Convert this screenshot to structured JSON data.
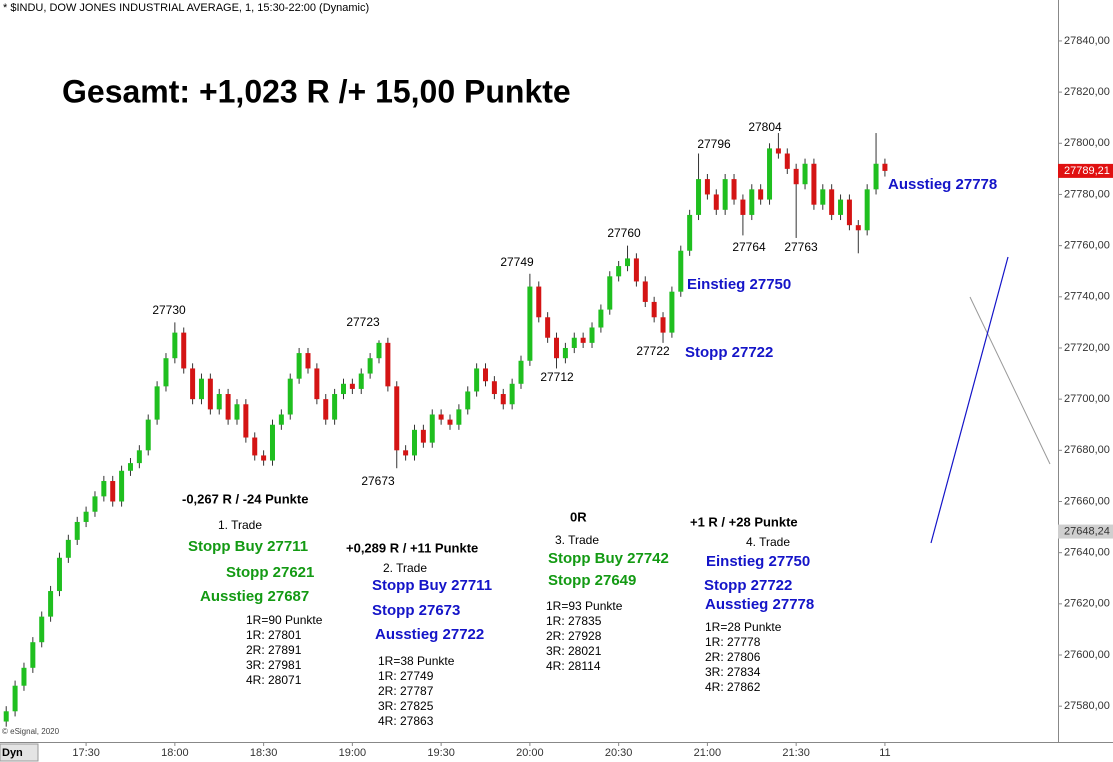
{
  "chart_data": {
    "type": "candlestick",
    "title": "* $INDU, DOW JONES INDUSTRIAL AVERAGE, 1, 15:30-22:00 (Dynamic)",
    "credit": "© eSignal, 2020",
    "tab": "Dyn",
    "up_color": "#1fbf1f",
    "down_color": "#d41414",
    "ylim": [
      27566,
      27856
    ],
    "yticks": [
      {
        "value": 27580,
        "label": "27580,00"
      },
      {
        "value": 27600,
        "label": "27600,00"
      },
      {
        "value": 27620,
        "label": "27620,00"
      },
      {
        "value": 27640,
        "label": "27640,00"
      },
      {
        "value": 27660,
        "label": "27660,00"
      },
      {
        "value": 27680,
        "label": "27680,00"
      },
      {
        "value": 27700,
        "label": "27700,00"
      },
      {
        "value": 27720,
        "label": "27720,00"
      },
      {
        "value": 27740,
        "label": "27740,00"
      },
      {
        "value": 27760,
        "label": "27760,00"
      },
      {
        "value": 27780,
        "label": "27780,00"
      },
      {
        "value": 27800,
        "label": "27800,00"
      },
      {
        "value": 27820,
        "label": "27820,00"
      },
      {
        "value": 27840,
        "label": "27840,00"
      }
    ],
    "xlim": [
      -0.7,
      118.5
    ],
    "xticks": [
      {
        "value": 9,
        "label": "17:30"
      },
      {
        "value": 19,
        "label": "18:00"
      },
      {
        "value": 29,
        "label": "18:30"
      },
      {
        "value": 39,
        "label": "19:00"
      },
      {
        "value": 49,
        "label": "19:30"
      },
      {
        "value": 59,
        "label": "20:00"
      },
      {
        "value": 69,
        "label": "20:30"
      },
      {
        "value": 79,
        "label": "21:00"
      },
      {
        "value": 89,
        "label": "21:30"
      },
      {
        "value": 99,
        "label": "11"
      }
    ],
    "price_tags": [
      {
        "value": 27789.21,
        "label": "27789,21",
        "color": "#e01010"
      },
      {
        "value": 27648.24,
        "label": "27648,24",
        "color": "#cfcfcf"
      }
    ],
    "open": [
      27574,
      27578,
      27588,
      27595,
      27605,
      27615,
      27625,
      27638,
      27645,
      27652,
      27656,
      27662,
      27668,
      27660,
      27672,
      27675,
      27680,
      27692,
      27705,
      27716,
      27726,
      27712,
      27700,
      27708,
      27696,
      27702,
      27692,
      27698,
      27685,
      27678,
      27676,
      27690,
      27694,
      27708,
      27718,
      27712,
      27700,
      27692,
      27702,
      27706,
      27704,
      27710,
      27716,
      27722,
      27705,
      27680,
      27678,
      27688,
      27683,
      27694,
      27692,
      27690,
      27696,
      27703,
      27712,
      27707,
      27702,
      27698,
      27706,
      27715,
      27744,
      27732,
      27724,
      27716,
      27720,
      27724,
      27722,
      27728,
      27735,
      27748,
      27752,
      27755,
      27746,
      27738,
      27732,
      27726,
      27742,
      27758,
      27772,
      27786,
      27780,
      27774,
      27786,
      27778,
      27772,
      27782,
      27778,
      27798,
      27796,
      27790,
      27784,
      27792,
      27776,
      27782,
      27772,
      27778,
      27768,
      27766,
      27782,
      27792
    ],
    "high": [
      27580,
      27590,
      27597,
      27607,
      27617,
      27627,
      27640,
      27647,
      27654,
      27658,
      27664,
      27670,
      27670,
      27674,
      27677,
      27682,
      27694,
      27707,
      27718,
      27730,
      27728,
      27714,
      27710,
      27710,
      27704,
      27704,
      27700,
      27700,
      27687,
      27680,
      27692,
      27696,
      27710,
      27720,
      27720,
      27714,
      27702,
      27704,
      27708,
      27708,
      27712,
      27718,
      27723,
      27724,
      27707,
      27682,
      27690,
      27690,
      27696,
      27696,
      27694,
      27698,
      27705,
      27714,
      27714,
      27709,
      27704,
      27708,
      27717,
      27749,
      27746,
      27734,
      27726,
      27722,
      27726,
      27726,
      27730,
      27737,
      27750,
      27754,
      27760,
      27757,
      27748,
      27740,
      27734,
      27744,
      27760,
      27774,
      27796,
      27788,
      27782,
      27788,
      27788,
      27780,
      27784,
      27784,
      27800,
      27804,
      27798,
      27792,
      27794,
      27794,
      27784,
      27784,
      27780,
      27780,
      27770,
      27784,
      27804,
      27794
    ],
    "low": [
      27572,
      27576,
      27586,
      27593,
      27603,
      27613,
      27623,
      27636,
      27643,
      27650,
      27654,
      27660,
      27658,
      27658,
      27670,
      27673,
      27678,
      27690,
      27703,
      27714,
      27710,
      27698,
      27698,
      27694,
      27694,
      27690,
      27690,
      27683,
      27676,
      27674,
      27674,
      27688,
      27692,
      27706,
      27710,
      27698,
      27690,
      27690,
      27700,
      27702,
      27702,
      27708,
      27714,
      27703,
      27673,
      27676,
      27676,
      27681,
      27681,
      27690,
      27688,
      27688,
      27694,
      27701,
      27705,
      27700,
      27696,
      27696,
      27704,
      27713,
      27730,
      27722,
      27712,
      27714,
      27718,
      27720,
      27720,
      27726,
      27733,
      27746,
      27750,
      27744,
      27736,
      27730,
      27722,
      27724,
      27740,
      27756,
      27770,
      27778,
      27772,
      27772,
      27776,
      27764,
      27770,
      27776,
      27776,
      27794,
      27788,
      27763,
      27782,
      27774,
      27774,
      27770,
      27770,
      27766,
      27757,
      27764,
      27780,
      27787
    ],
    "close": [
      27578,
      27588,
      27595,
      27605,
      27615,
      27625,
      27638,
      27645,
      27652,
      27656,
      27662,
      27668,
      27660,
      27672,
      27675,
      27680,
      27692,
      27705,
      27716,
      27726,
      27712,
      27700,
      27708,
      27696,
      27702,
      27692,
      27698,
      27685,
      27678,
      27676,
      27690,
      27694,
      27708,
      27718,
      27712,
      27700,
      27692,
      27702,
      27706,
      27704,
      27710,
      27716,
      27722,
      27705,
      27680,
      27678,
      27688,
      27683,
      27694,
      27692,
      27690,
      27696,
      27703,
      27712,
      27707,
      27702,
      27698,
      27706,
      27715,
      27744,
      27732,
      27724,
      27716,
      27720,
      27724,
      27722,
      27728,
      27735,
      27748,
      27752,
      27755,
      27746,
      27738,
      27732,
      27726,
      27742,
      27758,
      27772,
      27786,
      27780,
      27774,
      27786,
      27778,
      27772,
      27782,
      27778,
      27798,
      27796,
      27790,
      27784,
      27792,
      27776,
      27782,
      27772,
      27778,
      27768,
      27766,
      27782,
      27792,
      27789.21
    ],
    "annotations": [
      "Gesamt: +1,023 R /+ 15,00 Punkte",
      "27730",
      "27723",
      "27673",
      "27749",
      "27712",
      "27760",
      "27722",
      "27796",
      "27804",
      "27764",
      "27763",
      "Ausstieg 27778",
      "Einstieg 27750",
      "Stopp 27722",
      "-0,267 R / -24 Punkte",
      "1. Trade",
      "Stopp Buy 27711",
      "Stopp 27621",
      "Ausstieg 27687",
      "1R=90 Punkte",
      "1R: 27801",
      "2R: 27891",
      "3R: 27981",
      "4R: 28071",
      "+0,289 R / +11 Punkte",
      "2. Trade",
      "Stopp Buy 27711",
      "Stopp 27673",
      "Ausstieg 27722",
      "1R=38 Punkte",
      "1R: 27749",
      "2R: 27787",
      "3R: 27825",
      "4R: 27863",
      "0R",
      "3. Trade",
      "Stopp Buy 27742",
      "Stopp 27649",
      "1R=93 Punkte",
      "1R: 27835",
      "2R: 27928",
      "3R: 28021",
      "4R: 28114",
      "+1 R / +28 Punkte",
      "4. Trade",
      "Einstieg 27750",
      "Stopp 27722",
      "Ausstieg 27778",
      "1R=28 Punkte",
      "1R: 27778",
      "2R: 27806",
      "3R: 27834",
      "4R: 27862"
    ]
  }
}
